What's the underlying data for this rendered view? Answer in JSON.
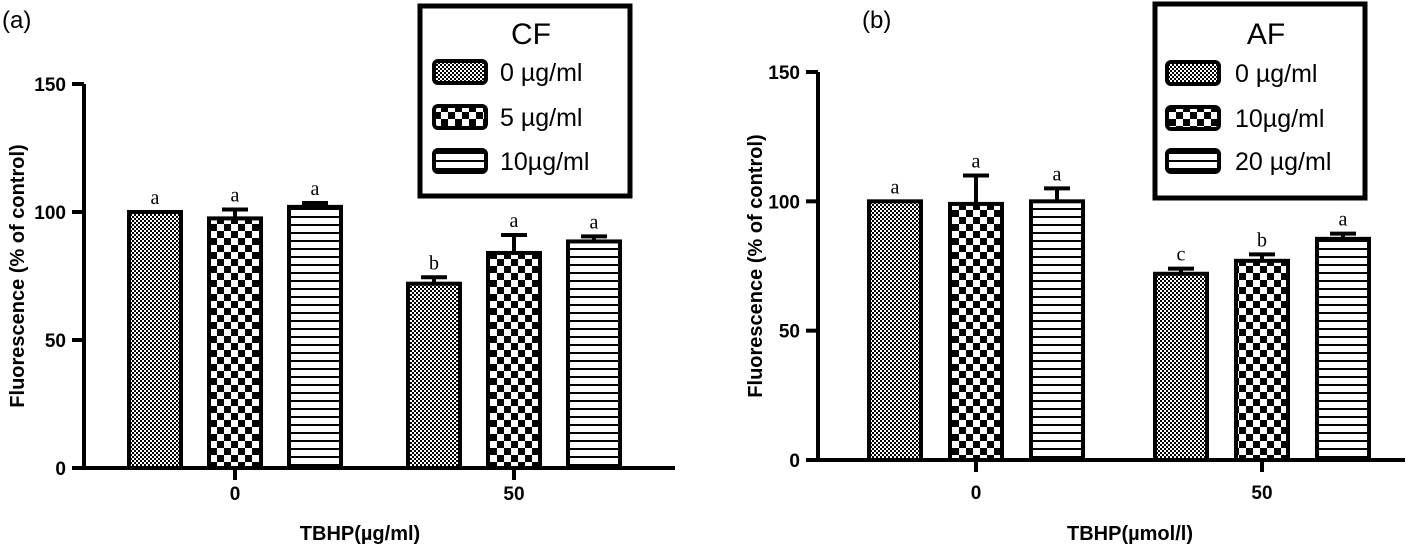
{
  "chart_data": [
    {
      "panel": "(a)",
      "type": "bar",
      "categories": [
        "0",
        "50"
      ],
      "xlabel": "TBHP(µg/ml)",
      "ylabel": "Fluorescence (% of control)",
      "ylim": [
        0,
        150
      ],
      "yticks": [
        0,
        50,
        100,
        150
      ],
      "legend_title": "CF",
      "legend_position": "top-right",
      "series": [
        {
          "name": "0 µg/ml",
          "pattern": "fine-check",
          "values": [
            100,
            72
          ],
          "errors": [
            0,
            2.5
          ],
          "labels": [
            "a",
            "b"
          ]
        },
        {
          "name": "5 µg/ml",
          "pattern": "checker",
          "values": [
            97.5,
            84
          ],
          "errors": [
            3.5,
            7
          ],
          "labels": [
            "a",
            "a"
          ]
        },
        {
          "name": "10µg/ml",
          "pattern": "hstripe",
          "values": [
            102,
            88.5
          ],
          "errors": [
            1.5,
            2
          ],
          "labels": [
            "a",
            "a"
          ]
        }
      ]
    },
    {
      "panel": "(b)",
      "type": "bar",
      "categories": [
        "0",
        "50"
      ],
      "xlabel": "TBHP(µmol/l)",
      "ylabel": "Fluorescence (% of control)",
      "ylim": [
        0,
        150
      ],
      "yticks": [
        0,
        50,
        100,
        150
      ],
      "legend_title": "AF",
      "legend_position": "top-right",
      "series": [
        {
          "name": "0 µg/ml",
          "pattern": "fine-check",
          "values": [
            100,
            72
          ],
          "errors": [
            0,
            2
          ],
          "labels": [
            "a",
            "c"
          ]
        },
        {
          "name": "10µg/ml",
          "pattern": "checker",
          "values": [
            99,
            77
          ],
          "errors": [
            11,
            2.5
          ],
          "labels": [
            "a",
            "b"
          ]
        },
        {
          "name": "20 µg/ml",
          "pattern": "hstripe",
          "values": [
            100,
            85.5
          ],
          "errors": [
            5,
            2
          ],
          "labels": [
            "a",
            "a"
          ]
        }
      ]
    }
  ]
}
